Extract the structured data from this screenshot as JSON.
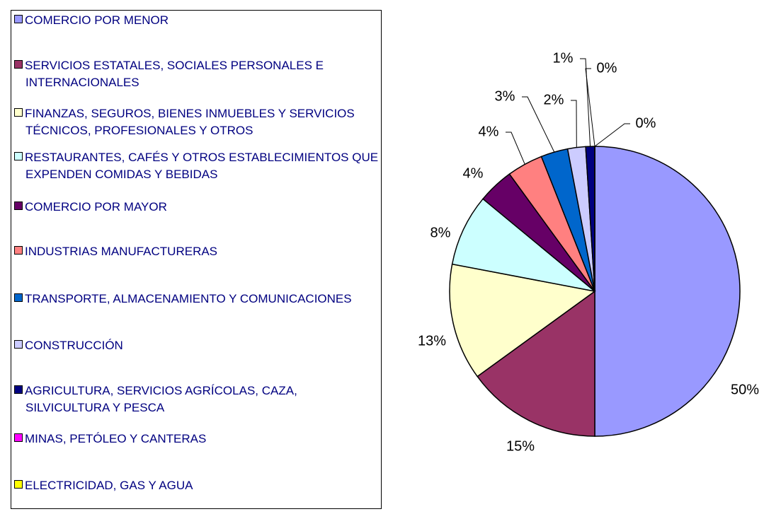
{
  "chart_data": {
    "type": "pie",
    "categories": [
      "COMERCIO POR MENOR",
      "SERVICIOS ESTATALES, SOCIALES PERSONALES E INTERNACIONALES",
      "FINANZAS, SEGUROS, BIENES INMUEBLES Y SERVICIOS TÉCNICOS, PROFESIONALES Y OTROS",
      "RESTAURANTES, CAFÉS Y OTROS ESTABLECIMIENTOS QUE EXPENDEN COMIDAS Y BEBIDAS",
      "COMERCIO POR MAYOR",
      "INDUSTRIAS MANUFACTURERAS",
      "TRANSPORTE, ALMACENAMIENTO Y COMUNICACIONES",
      "CONSTRUCCIÓN",
      "AGRICULTURA, SERVICIOS AGRÍCOLAS, CAZA, SILVICULTURA Y PESCA",
      "MINAS, PETÓLEO Y CANTERAS",
      "ELECTRICIDAD, GAS Y AGUA"
    ],
    "values": [
      50,
      15,
      13,
      8,
      4,
      4,
      3,
      2,
      1,
      0,
      0
    ],
    "value_labels": [
      "50%",
      "15%",
      "13%",
      "8%",
      "4%",
      "4%",
      "3%",
      "2%",
      "1%",
      "0%",
      "0%"
    ],
    "colors": [
      "#9999ff",
      "#993366",
      "#ffffcc",
      "#ccffff",
      "#660066",
      "#ff8080",
      "#0066cc",
      "#ccccff",
      "#000080",
      "#ff00ff",
      "#ffff00"
    ],
    "legend": "left"
  }
}
